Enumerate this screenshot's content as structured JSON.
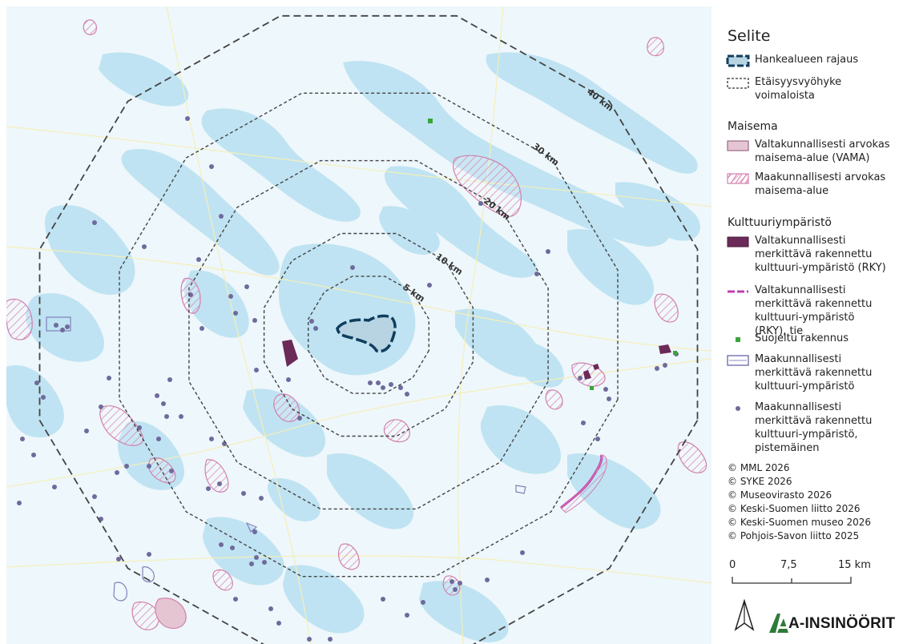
{
  "legend": {
    "title": "Selite",
    "items_top": [
      {
        "label": "Hankealueen rajaus"
      },
      {
        "label": "Etäisyysvyöhyke voimaloista"
      }
    ],
    "maisema": {
      "heading": "Maisema",
      "items": [
        {
          "label": "Valtakunnallisesti arvokas maisema-alue (VAMA)"
        },
        {
          "label": "Maakunnallisesti arvokas maisema-alue"
        }
      ]
    },
    "kulttuuri": {
      "heading": "Kulttuuriympäristö",
      "items": [
        {
          "label": "Valtakunnallisesti merkittävä rakennettu kulttuuri-ympäristö (RKY)"
        },
        {
          "label": "Valtakunnallisesti merkittävä rakennettu kulttuuri-ympäristö (RKY), tie"
        },
        {
          "label": "Suojeltu rakennus"
        },
        {
          "label": "Maakunnallisesti merkittävä rakennettu kulttuuri-ympäristö"
        },
        {
          "label": "Maakunnallisesti merkittävä rakennettu kulttuuri-ympäristö, pistemäinen"
        }
      ]
    },
    "copyright": [
      "© MML 2026",
      "© SYKE 2026",
      "© Museovirasto 2026",
      "© Keski-Suomen liitto 2026",
      "© Keski-Suomen museo 2026",
      "© Pohjois-Savon liitto 2025"
    ],
    "scalebar": {
      "labels": [
        "0",
        "7,5",
        "15 km"
      ]
    },
    "logo": {
      "text": "A-INSINÖÖRIT",
      "north_arrow": "north-arrow-icon",
      "brand_icon": "a-insinoorit-logo"
    }
  },
  "map": {
    "ring_labels": [
      "5 km",
      "10 km",
      "20 km",
      "30 km",
      "40 km"
    ],
    "colors": {
      "water": "#bfe3f2",
      "land": "#eef7fb",
      "project": "#0f3e5e",
      "rky": "#6b2a57",
      "vama_fill": "#e6c5d3",
      "maak_line": "#d27fae",
      "point": "#6f6a9c",
      "protected": "#3aa53a",
      "maak_area": "#6666aa",
      "road": "#c03fb1"
    }
  }
}
